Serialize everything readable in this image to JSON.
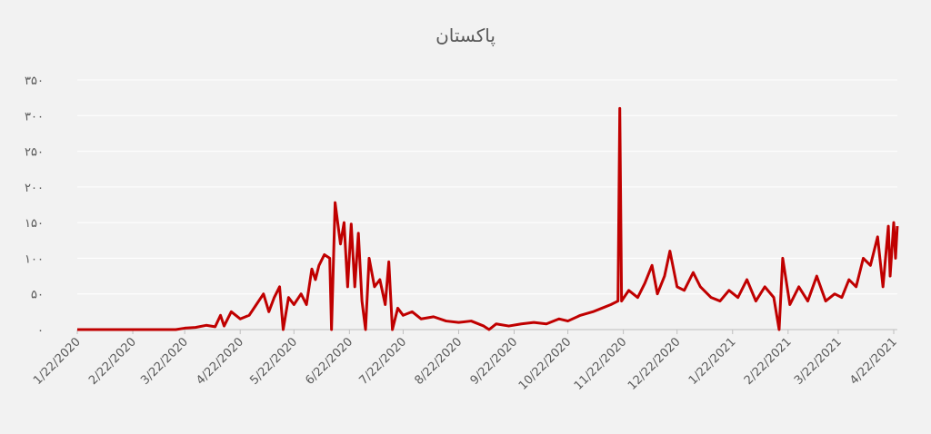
{
  "chart_data": {
    "type": "line",
    "title": "پاکستان",
    "x": [
      "1/22/2020",
      "2/22/2020",
      "3/17/2020",
      "3/22/2020",
      "3/28/2020",
      "4/3/2020",
      "4/8/2020",
      "4/11/2020",
      "4/13/2020",
      "4/17/2020",
      "4/22/2020",
      "4/27/2020",
      "5/1/2020",
      "5/5/2020",
      "5/8/2020",
      "5/11/2020",
      "5/14/2020",
      "5/16/2020",
      "5/19/2020",
      "5/22/2020",
      "5/26/2020",
      "5/29/2020",
      "6/1/2020",
      "6/3/2020",
      "6/5/2020",
      "6/8/2020",
      "6/11/2020",
      "6/12/2020",
      "6/14/2020",
      "6/17/2020",
      "6/19/2020",
      "6/21/2020",
      "6/23/2020",
      "6/25/2020",
      "6/27/2020",
      "6/29/2020",
      "7/1/2020",
      "7/3/2020",
      "7/6/2020",
      "7/9/2020",
      "7/12/2020",
      "7/14/2020",
      "7/16/2020",
      "7/19/2020",
      "7/22/2020",
      "7/27/2020",
      "8/1/2020",
      "8/8/2020",
      "8/15/2020",
      "8/22/2020",
      "8/29/2020",
      "9/5/2020",
      "9/8/2020",
      "9/12/2020",
      "9/19/2020",
      "9/26/2020",
      "10/3/2020",
      "10/10/2020",
      "10/17/2020",
      "10/22/2020",
      "10/29/2020",
      "11/5/2020",
      "11/10/2020",
      "11/15/2020",
      "11/19/2020",
      "11/20/2020",
      "11/21/2020",
      "11/25/2020",
      "11/30/2020",
      "12/4/2020",
      "12/8/2020",
      "12/11/2020",
      "12/15/2020",
      "12/18/2020",
      "12/22/2020",
      "12/26/2020",
      "12/31/2020",
      "1/4/2021",
      "1/10/2021",
      "1/15/2021",
      "1/20/2021",
      "1/25/2021",
      "1/30/2021",
      "2/4/2021",
      "2/9/2021",
      "2/14/2021",
      "2/17/2021",
      "2/19/2021",
      "2/23/2021",
      "2/28/2021",
      "3/5/2021",
      "3/10/2021",
      "3/15/2021",
      "3/20/2021",
      "3/24/2021",
      "3/28/2021",
      "4/1/2021",
      "4/5/2021",
      "4/9/2021",
      "4/13/2021",
      "4/16/2021",
      "4/19/2021",
      "4/20/2021",
      "4/22/2021",
      "4/23/2021",
      "4/24/2021"
    ],
    "series": [
      {
        "color": "#c00000",
        "values": [
          0,
          0,
          0,
          2,
          3,
          6,
          4,
          20,
          5,
          25,
          15,
          20,
          35,
          50,
          25,
          45,
          60,
          0,
          45,
          35,
          50,
          35,
          85,
          70,
          90,
          105,
          100,
          0,
          178,
          120,
          150,
          60,
          148,
          60,
          135,
          40,
          0,
          100,
          60,
          70,
          35,
          95,
          0,
          30,
          20,
          25,
          15,
          18,
          12,
          10,
          12,
          5,
          0,
          8,
          5,
          8,
          10,
          8,
          15,
          12,
          20,
          25,
          30,
          35,
          40,
          310,
          40,
          55,
          45,
          65,
          90,
          50,
          75,
          110,
          60,
          55,
          80,
          60,
          45,
          40,
          55,
          45,
          70,
          40,
          60,
          45,
          0,
          100,
          35,
          60,
          40,
          75,
          40,
          50,
          45,
          70,
          60,
          100,
          90,
          130,
          60,
          145,
          75,
          150,
          100,
          145
        ]
      }
    ],
    "xlim": [
      "1/22/2020",
      "4/24/2021"
    ],
    "xticks": [
      "1/22/2020",
      "2/22/2020",
      "3/22/2020",
      "4/22/2020",
      "5/22/2020",
      "6/22/2020",
      "7/22/2020",
      "8/22/2020",
      "9/22/2020",
      "10/22/2020",
      "11/22/2020",
      "12/22/2020",
      "1/22/2021",
      "2/22/2021",
      "3/22/2021",
      "4/22/2021"
    ],
    "ylim": [
      0,
      350
    ],
    "yticks": [
      {
        "value": 0,
        "label": "۰"
      },
      {
        "value": 50,
        "label": "۵۰"
      },
      {
        "value": 100,
        "label": "۱۰۰"
      },
      {
        "value": 150,
        "label": "۱۵۰"
      },
      {
        "value": 200,
        "label": "۲۰۰"
      },
      {
        "value": 250,
        "label": "۲۵۰"
      },
      {
        "value": 300,
        "label": "۳۰۰"
      },
      {
        "value": 350,
        "label": "۳۵۰"
      }
    ],
    "grid": true
  }
}
